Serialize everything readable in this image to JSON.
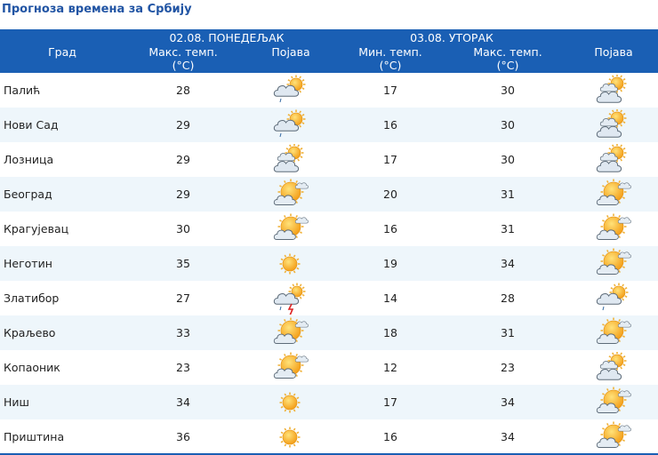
{
  "page_title": "Прогноза времена за Србију",
  "header": {
    "city": "Град",
    "day1": "02.08. ПОНЕДЕЉАК",
    "day2": "03.08. УТОРАК",
    "max_temp": "Макс. темп.",
    "min_temp": "Мин. темп.",
    "unit": "(°C)",
    "phenomenon": "Појава"
  },
  "rows": [
    {
      "city": "Палић",
      "max1": "28",
      "icon1": "cloudy-sun-shower-icon",
      "min2": "17",
      "max2": "30",
      "icon2": "sun-behind-clouds-icon"
    },
    {
      "city": "Нови Сад",
      "max1": "29",
      "icon1": "cloudy-sun-shower-icon",
      "min2": "16",
      "max2": "30",
      "icon2": "sun-behind-clouds-icon"
    },
    {
      "city": "Лозница",
      "max1": "29",
      "icon1": "sun-behind-clouds-icon",
      "min2": "17",
      "max2": "30",
      "icon2": "sun-behind-clouds-icon"
    },
    {
      "city": "Београд",
      "max1": "29",
      "icon1": "partly-cloudy-icon",
      "min2": "20",
      "max2": "31",
      "icon2": "partly-cloudy-icon"
    },
    {
      "city": "Крагујевац",
      "max1": "30",
      "icon1": "partly-cloudy-icon",
      "min2": "16",
      "max2": "31",
      "icon2": "partly-cloudy-icon"
    },
    {
      "city": "Неготин",
      "max1": "35",
      "icon1": "sun-icon",
      "min2": "19",
      "max2": "34",
      "icon2": "partly-cloudy-icon"
    },
    {
      "city": "Златибор",
      "max1": "27",
      "icon1": "thunderstorm-icon",
      "min2": "14",
      "max2": "28",
      "icon2": "cloudy-sun-shower-icon"
    },
    {
      "city": "Краљево",
      "max1": "33",
      "icon1": "partly-cloudy-icon",
      "min2": "18",
      "max2": "31",
      "icon2": "partly-cloudy-icon"
    },
    {
      "city": "Копаоник",
      "max1": "23",
      "icon1": "partly-cloudy-icon",
      "min2": "12",
      "max2": "23",
      "icon2": "sun-behind-clouds-icon"
    },
    {
      "city": "Ниш",
      "max1": "34",
      "icon1": "sun-icon",
      "min2": "17",
      "max2": "34",
      "icon2": "partly-cloudy-icon"
    },
    {
      "city": "Приштина",
      "max1": "36",
      "icon1": "sun-icon",
      "min2": "16",
      "max2": "34",
      "icon2": "partly-cloudy-icon"
    }
  ],
  "colors": {
    "header_bg": "#1a5fb4",
    "title": "#2255a4",
    "row_alt": "#eef6fb",
    "sun": "#f5a623",
    "cloud": "#c8d4e0"
  }
}
